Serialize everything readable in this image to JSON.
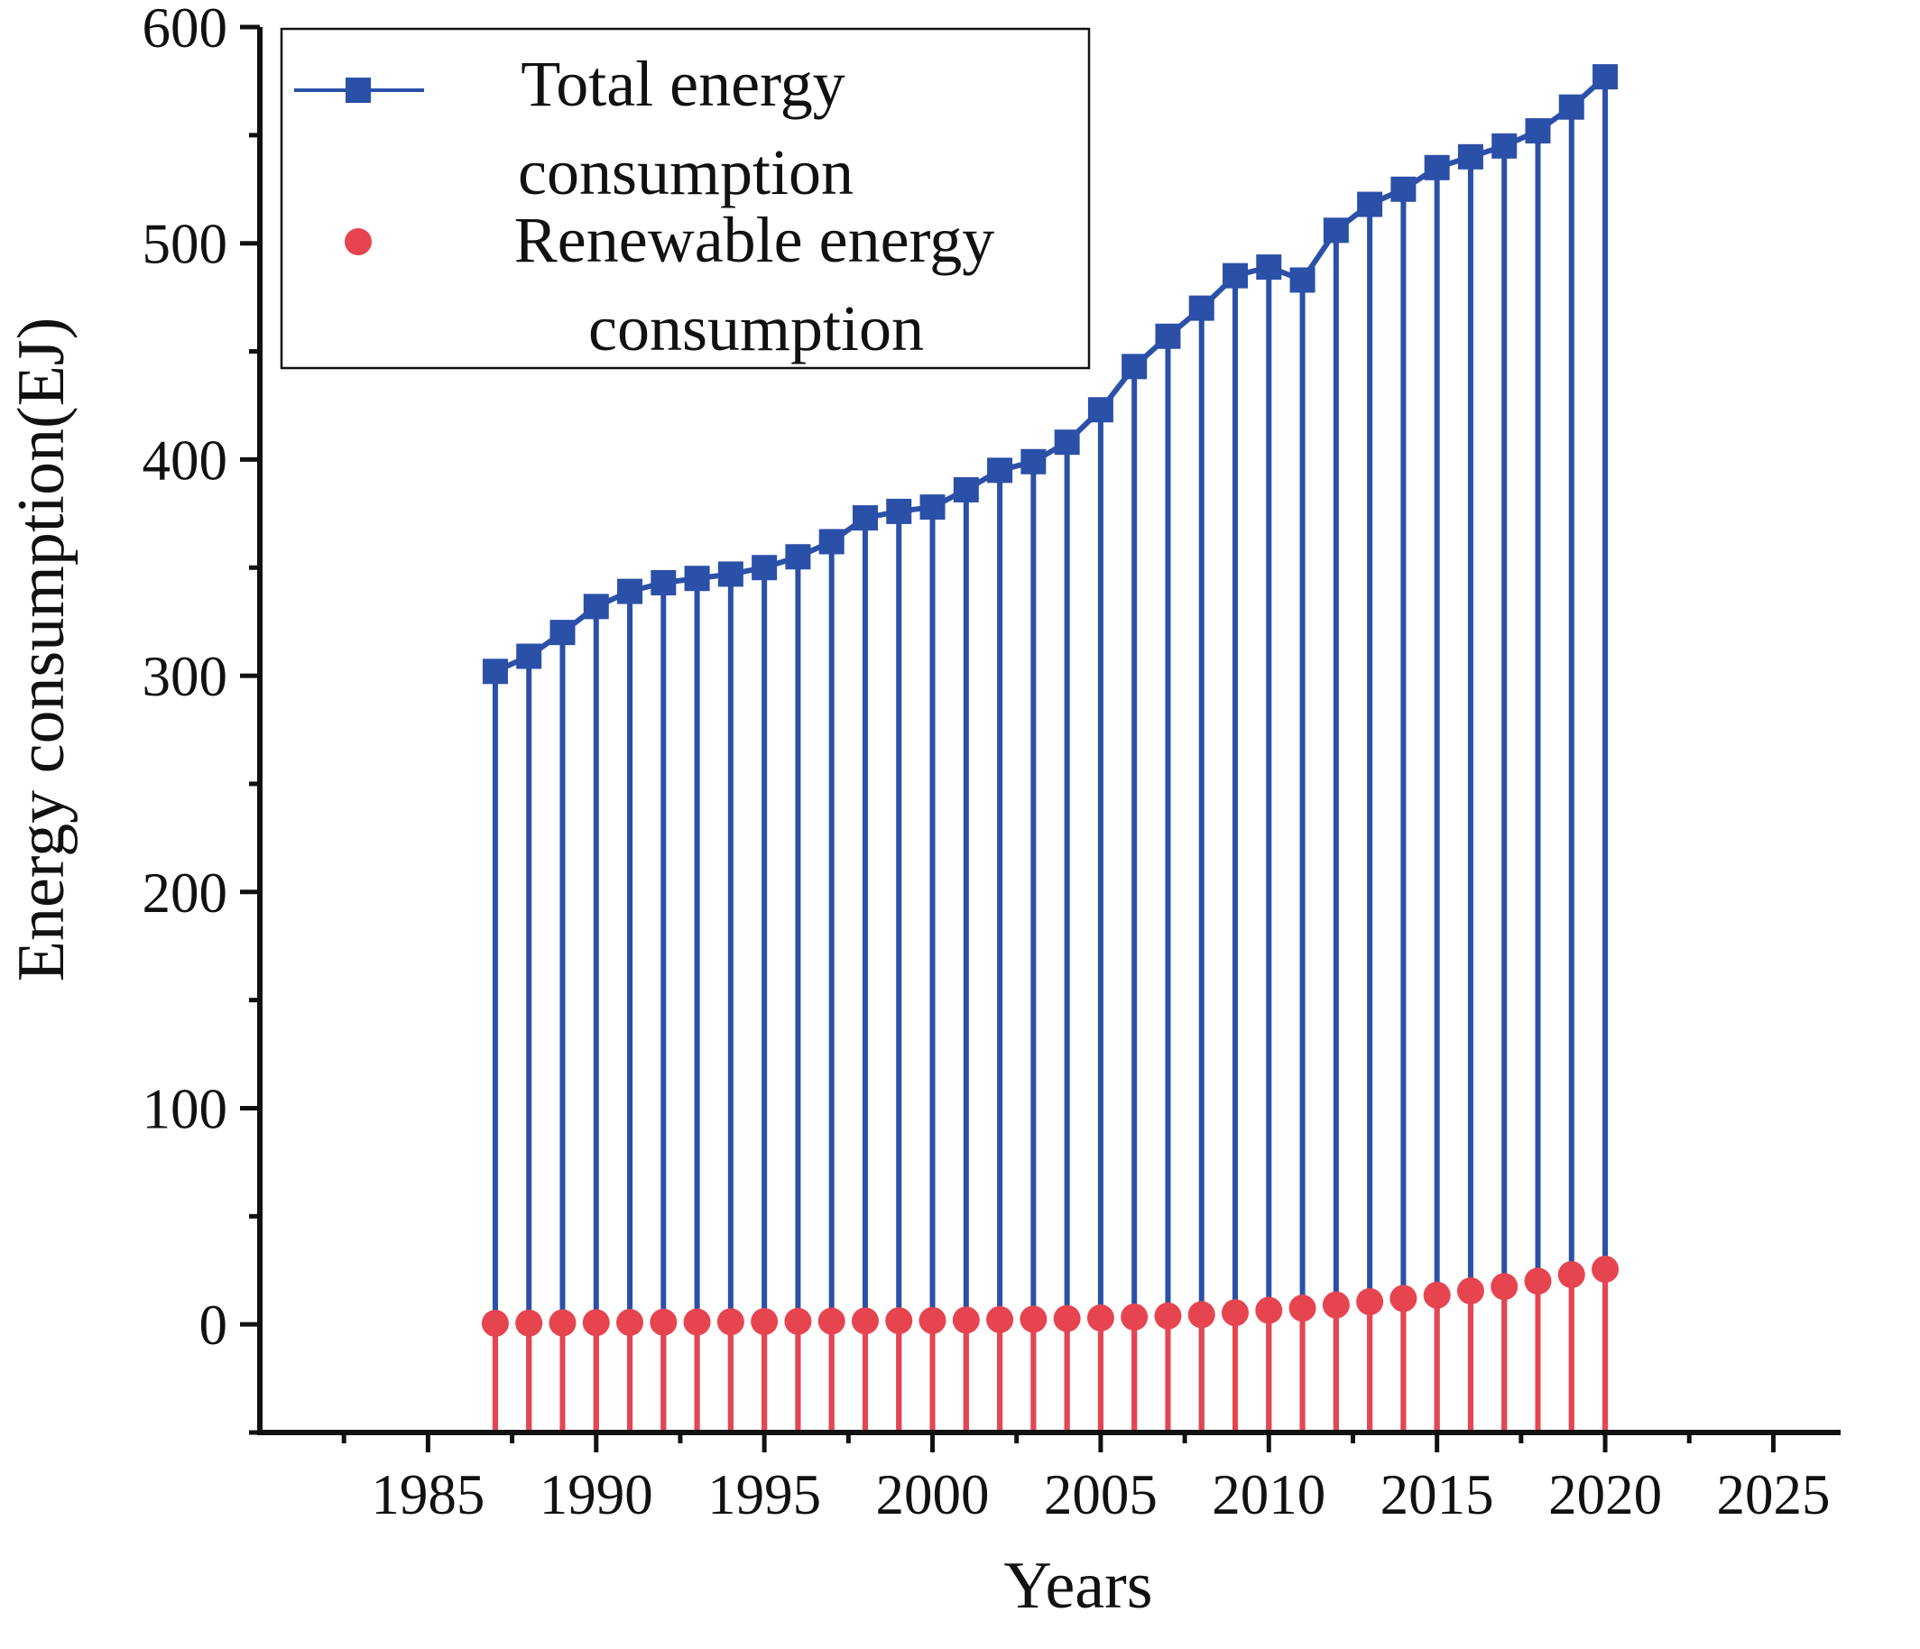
{
  "chart_data": {
    "type": "line",
    "title": "",
    "xlabel": "Years",
    "ylabel": "Energy consumption(EJ)",
    "xlim": [
      1980,
      2027
    ],
    "ylim": [
      -50,
      600
    ],
    "xticks": [
      1985,
      1990,
      1995,
      2000,
      2005,
      2010,
      2015,
      2020,
      2025
    ],
    "yticks": [
      0,
      100,
      200,
      300,
      400,
      500,
      600
    ],
    "grid": false,
    "legend_position": "top-left",
    "drop_lines": true,
    "x": [
      1987,
      1988,
      1989,
      1990,
      1991,
      1992,
      1993,
      1994,
      1995,
      1996,
      1997,
      1998,
      1999,
      2000,
      2001,
      2002,
      2003,
      2004,
      2005,
      2006,
      2007,
      2008,
      2009,
      2010,
      2011,
      2012,
      2013,
      2014,
      2015,
      2016,
      2017,
      2018,
      2019,
      2020
    ],
    "series": [
      {
        "name": "Total energy consumption",
        "legend_lines": [
          "Total energy",
          "consumption"
        ],
        "color": "#2b50a8",
        "marker": "square",
        "values": [
          302,
          309,
          320,
          332,
          339,
          343,
          345,
          347,
          350,
          355,
          362,
          373,
          376,
          378,
          386,
          395,
          399,
          408,
          423,
          443,
          457,
          470,
          485,
          489,
          483,
          506,
          518,
          525,
          535,
          540,
          545,
          552,
          563,
          577
        ]
      },
      {
        "name": "Renewable energy consumption",
        "legend_lines": [
          "Renewable energy",
          "consumption"
        ],
        "color": "#e64550",
        "marker": "circle",
        "values": [
          0.5,
          0.6,
          0.7,
          0.8,
          0.9,
          1.0,
          1.1,
          1.2,
          1.3,
          1.4,
          1.5,
          1.6,
          1.7,
          1.8,
          2.0,
          2.2,
          2.4,
          2.7,
          3.0,
          3.4,
          3.9,
          4.5,
          5.4,
          6.5,
          7.5,
          9.0,
          10.5,
          12.0,
          13.5,
          15.5,
          17.5,
          20.0,
          23.0,
          25.5
        ]
      }
    ]
  }
}
